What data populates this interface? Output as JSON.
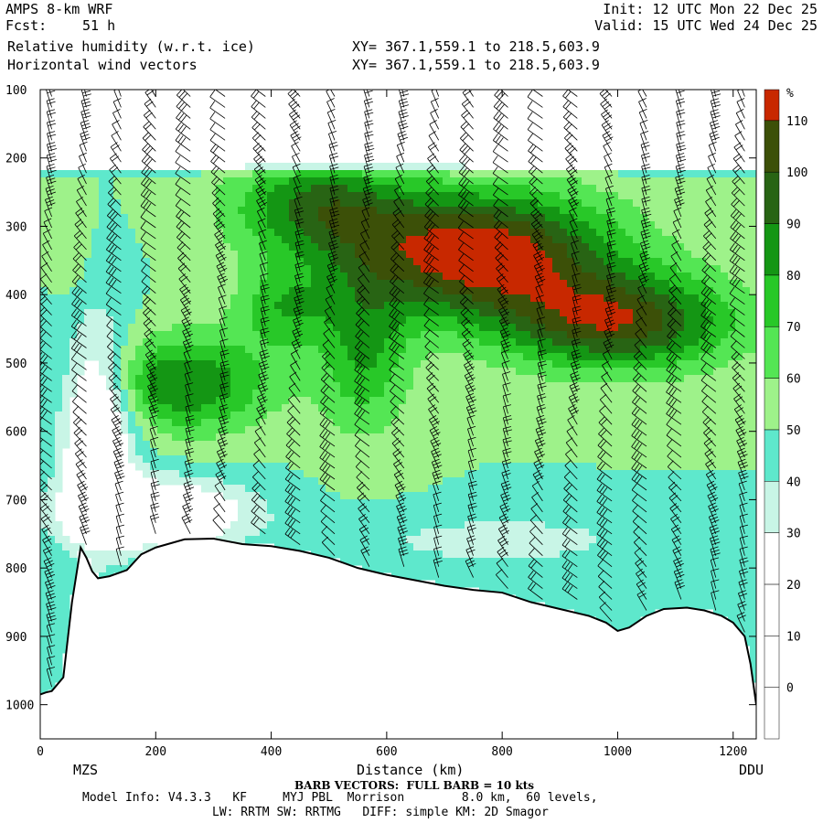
{
  "header": {
    "title_left": "AMPS 8-km WRF",
    "fcst_label": "Fcst:",
    "fcst_value": "51 h",
    "field1": "Relative humidity (w.r.t. ice)",
    "field2": "Horizontal wind vectors",
    "init": "Init: 12 UTC Mon 22 Dec 25",
    "valid": "Valid: 15 UTC Wed 24 Dec 25",
    "xy1": "XY= 367.1,559.1 to 218.5,603.9",
    "xy2": "XY= 367.1,559.1 to 218.5,603.9"
  },
  "footer": {
    "barb": "BARB VECTORS:  FULL BARB = 10 kts",
    "model": "Model Info: V4.3.3   KF     MYJ PBL  Morrison        8.0 km,  60 levels,",
    "physics": "LW: RRTM SW: RRTMG   DIFF: simple KM: 2D Smagor",
    "left_station": "MZS",
    "right_station": "DDU"
  },
  "chart_data": {
    "type": "heatmap",
    "xlabel": "Distance (km)",
    "ylabel": "",
    "xlim": [
      0,
      1240
    ],
    "ylim": [
      1050,
      100
    ],
    "x_ticks": [
      0,
      200,
      400,
      600,
      800,
      1000,
      1200
    ],
    "y_ticks": [
      100,
      200,
      300,
      400,
      500,
      600,
      700,
      800,
      900,
      1000
    ],
    "colorbar": {
      "unit": "%",
      "levels": [
        0,
        10,
        20,
        30,
        40,
        50,
        60,
        70,
        80,
        90,
        100,
        110
      ],
      "colors": [
        "#ffffff",
        "#ffffff",
        "#ffffff",
        "#ffffff",
        "#c8f5e6",
        "#5ee8cc",
        "#9ef28a",
        "#54e654",
        "#28c828",
        "#149614",
        "#286414",
        "#3c5008",
        "#c82800"
      ]
    },
    "terrain": {
      "x": [
        0,
        10,
        20,
        40,
        55,
        70,
        80,
        90,
        100,
        120,
        150,
        175,
        200,
        250,
        300,
        350,
        400,
        450,
        500,
        550,
        600,
        650,
        700,
        750,
        800,
        850,
        900,
        950,
        980,
        1000,
        1020,
        1050,
        1080,
        1120,
        1150,
        1180,
        1200,
        1220,
        1230,
        1240
      ],
      "p": [
        985,
        982,
        980,
        960,
        850,
        770,
        785,
        805,
        815,
        812,
        803,
        780,
        770,
        758,
        757,
        765,
        768,
        775,
        785,
        800,
        810,
        818,
        826,
        832,
        836,
        850,
        860,
        870,
        880,
        892,
        887,
        870,
        860,
        858,
        862,
        870,
        880,
        900,
        940,
        1000
      ]
    },
    "rh_field": {
      "base": 50,
      "dry_above_p": 200,
      "blobs": [
        {
          "x": 760,
          "p": 340,
          "sx": 230,
          "sp": 90,
          "amp": 70
        },
        {
          "x": 1000,
          "p": 440,
          "sx": 200,
          "sp": 70,
          "amp": 55
        },
        {
          "x": 480,
          "p": 270,
          "sx": 150,
          "sp": 70,
          "amp": 40
        },
        {
          "x": 250,
          "p": 530,
          "sx": 150,
          "sp": 70,
          "amp": 40
        },
        {
          "x": 560,
          "p": 480,
          "sx": 80,
          "sp": 120,
          "amp": 30
        },
        {
          "x": 420,
          "p": 420,
          "sx": 80,
          "sp": 60,
          "amp": 25
        },
        {
          "x": 100,
          "p": 600,
          "sx": 60,
          "sp": 150,
          "amp": -50
        },
        {
          "x": 200,
          "p": 720,
          "sx": 160,
          "sp": 50,
          "amp": -45
        },
        {
          "x": 800,
          "p": 760,
          "sx": 260,
          "sp": 40,
          "amp": -15
        },
        {
          "x": 50,
          "p": 330,
          "sx": 30,
          "sp": 70,
          "amp": 10
        }
      ]
    },
    "barbs": {
      "columns_x": [
        20,
        80,
        140,
        200,
        260,
        320,
        390,
        450,
        510,
        570,
        630,
        690,
        750,
        810,
        870,
        930,
        990,
        1050,
        1110,
        1170,
        1220
      ],
      "p_step": 16,
      "p_top": 110
    }
  }
}
